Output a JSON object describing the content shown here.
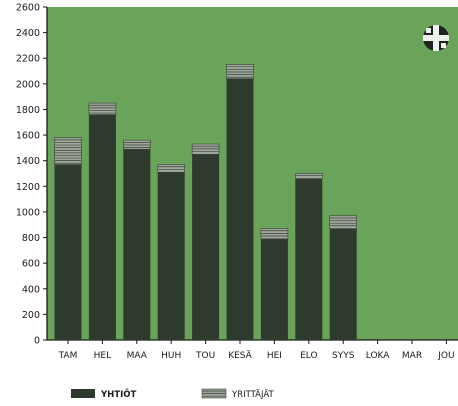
{
  "chart_data": {
    "type": "bar",
    "stacked": true,
    "categories": [
      "TAM",
      "HEL",
      "MAA",
      "HUH",
      "TOU",
      "KESÄ",
      "HEI",
      "ELO",
      "SYYS",
      "LOKA",
      "MAR",
      "JOU"
    ],
    "series": [
      {
        "name": "YHTIÖT",
        "values": [
          1370,
          1760,
          1490,
          1310,
          1450,
          2040,
          790,
          1260,
          870,
          null,
          null,
          null
        ]
      },
      {
        "name": "YRITTÄJÄT",
        "values": [
          210,
          90,
          70,
          60,
          80,
          110,
          80,
          40,
          100,
          null,
          null,
          null
        ]
      }
    ],
    "ylim": [
      0,
      2600
    ],
    "yticks": [
      0,
      200,
      400,
      600,
      800,
      1000,
      1200,
      1400,
      1600,
      1800,
      2000,
      2200,
      2400,
      2600
    ],
    "grid": false,
    "legend_position": "bottom",
    "colors": {
      "plot_background": "#6aa35a",
      "yhtiot": "#2f3a2e",
      "yrittajat": "#9fa79c",
      "axis": "#1b1b1b"
    },
    "icon": "finnish-cross-logo-icon"
  }
}
